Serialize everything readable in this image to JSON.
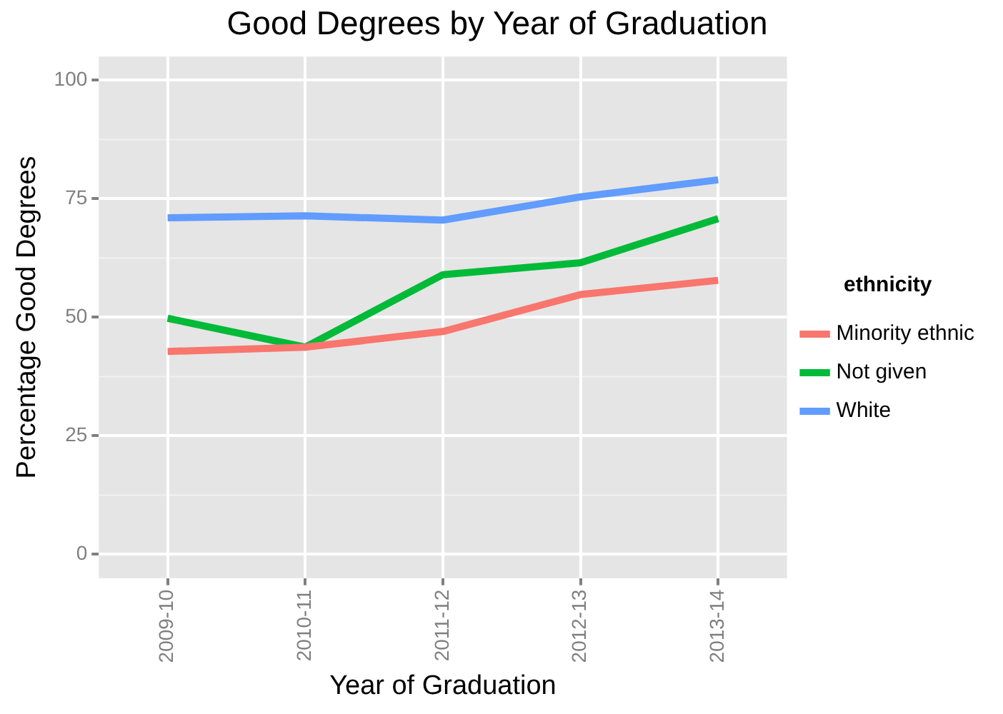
{
  "chart_data": {
    "type": "line",
    "title": "Good Degrees by Year of Graduation",
    "xlabel": "Year of Graduation",
    "ylabel": "Percentage Good Degrees",
    "legend_title": "ethnicity",
    "categories": [
      "2009-10",
      "2010-11",
      "2011-12",
      "2012-13",
      "2013-14"
    ],
    "series": [
      {
        "name": "Minority ethnic",
        "color": "#f8766d",
        "values": [
          42.8,
          43.7,
          47,
          54.8,
          57.8
        ]
      },
      {
        "name": "Not given",
        "color": "#00ba38",
        "values": [
          49.8,
          43.7,
          59,
          61.5,
          70.8
        ]
      },
      {
        "name": "White",
        "color": "#619cff",
        "values": [
          71,
          71.4,
          70.5,
          75.4,
          79
        ]
      }
    ],
    "ylim": [
      -5,
      105
    ],
    "yticks": [
      0,
      25,
      50,
      75,
      100
    ],
    "grid": true,
    "legend": "right",
    "marker": "none",
    "line_style": "solid"
  }
}
